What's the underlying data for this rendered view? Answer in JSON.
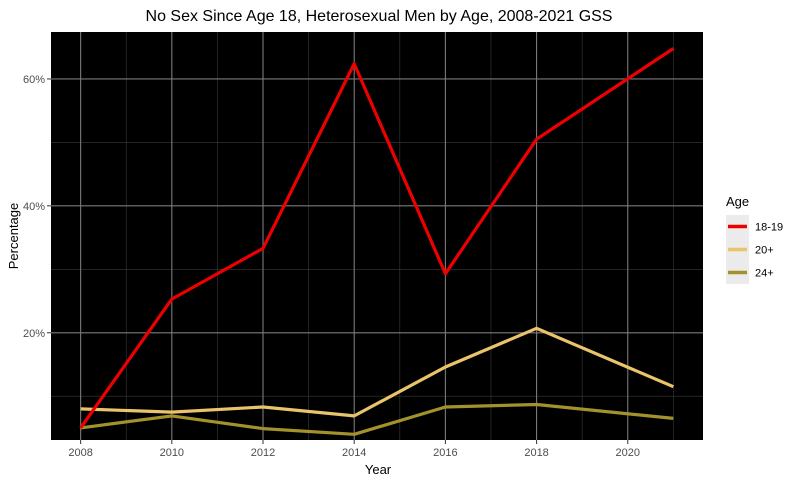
{
  "chart_data": {
    "type": "line",
    "title": "No Sex Since Age 18, Heterosexual Men by Age, 2008-2021 GSS",
    "xlabel": "Year",
    "ylabel": "Percentage",
    "xlim": [
      2007.35,
      2021.65
    ],
    "ylim": [
      3.1,
      67.4
    ],
    "x_ticks": [
      2008,
      2010,
      2012,
      2014,
      2016,
      2018,
      2020
    ],
    "x_minor_ticks": [
      2009,
      2011,
      2013,
      2015,
      2017,
      2019,
      2021
    ],
    "y_ticks": [
      {
        "value": 20,
        "label": "20%"
      },
      {
        "value": 40,
        "label": "40%"
      },
      {
        "value": 60,
        "label": "60%"
      }
    ],
    "y_minor_ticks": [
      10,
      30,
      50
    ],
    "grid": true,
    "panel_background": "#000000",
    "legend": {
      "title": "Age",
      "position": "right"
    },
    "x": [
      2008,
      2010,
      2012,
      2014,
      2016,
      2018,
      2021
    ],
    "series": [
      {
        "name": "18-19",
        "color": "#ee0000",
        "values": [
          5.0,
          25.3,
          33.3,
          62.4,
          29.3,
          50.5,
          64.8
        ]
      },
      {
        "name": "20+",
        "color": "#e9c46a",
        "values": [
          8.0,
          7.5,
          8.3,
          6.9,
          14.6,
          20.7,
          11.5
        ]
      },
      {
        "name": "24+",
        "color": "#a3922c",
        "values": [
          5.0,
          6.9,
          4.9,
          4.0,
          8.3,
          8.7,
          6.5
        ]
      }
    ]
  }
}
